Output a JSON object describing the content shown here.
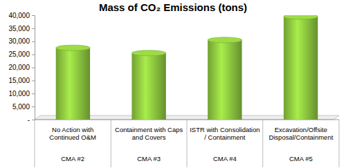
{
  "chart_data": {
    "type": "bar",
    "title": "Mass of CO₂ Emissions (tons)",
    "categories": [
      [
        "No Action with Continued O&M",
        "CMA #2"
      ],
      [
        "Containment with Caps and Covers",
        "CMA #3"
      ],
      [
        "ISTR with Consolidation / Containment",
        "CMA #4"
      ],
      [
        "Excavation/Offsite Disposal/Containment",
        "CMA #5"
      ]
    ],
    "values": [
      27500,
      25500,
      30500,
      39500
    ],
    "color": "#8dc63f",
    "ylim": [
      0,
      40000
    ],
    "yticks": [
      {
        "value": 0,
        "label": "-"
      },
      {
        "value": 5000,
        "label": "5,000"
      },
      {
        "value": 10000,
        "label": "10,000"
      },
      {
        "value": 15000,
        "label": "15,000"
      },
      {
        "value": 20000,
        "label": "20,000"
      },
      {
        "value": 25000,
        "label": "25,000"
      },
      {
        "value": 30000,
        "label": "30,000"
      },
      {
        "value": 35000,
        "label": "35,000"
      },
      {
        "value": 40000,
        "label": "40,000"
      }
    ],
    "grid": false
  }
}
